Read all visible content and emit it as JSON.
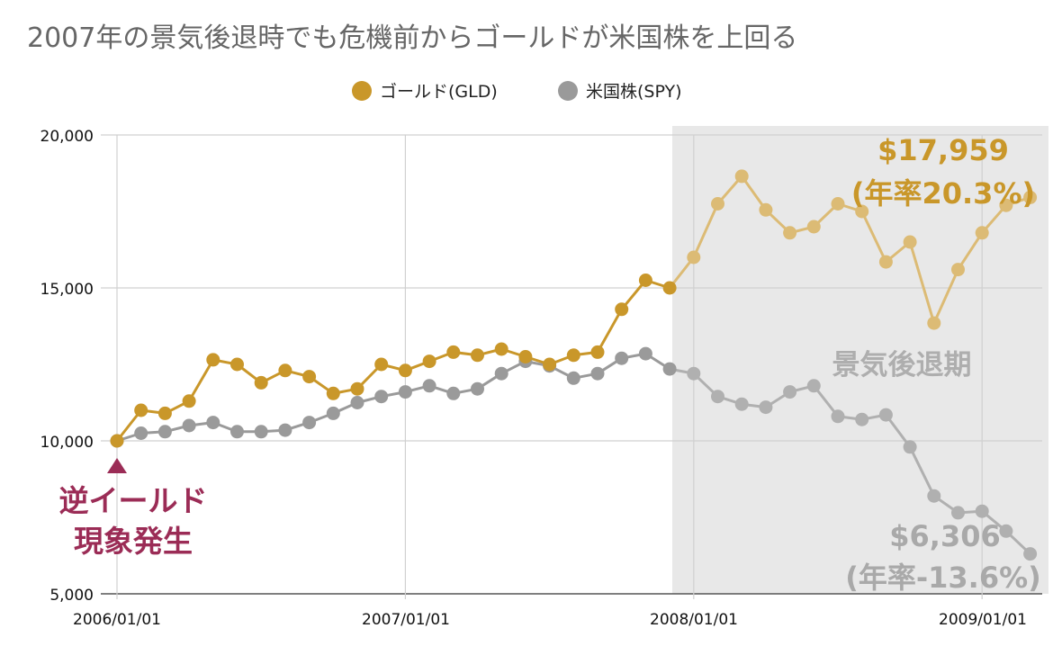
{
  "chart_data": {
    "type": "line",
    "title": "2007年の景気後退時でも危機前からゴールドが米国株を上回る",
    "legend": {
      "placement": "top-center",
      "entries": [
        "ゴールド(GLD)",
        "米国株(SPY)"
      ]
    },
    "x_tick_labels": [
      "2006/01/01",
      "2007/01/01",
      "2008/01/01",
      "2009/01/01"
    ],
    "y_tick_labels": [
      "20,000",
      "15,000",
      "10,000",
      "5,000"
    ],
    "ylim": [
      5000,
      20000
    ],
    "grid": true,
    "shaded_region": {
      "label": "景気後退期",
      "from_month_index": 23,
      "to_month_index": 39
    },
    "series": [
      {
        "name": "ゴールド(GLD)",
        "color": "#C9972A",
        "values": [
          10000,
          11000,
          10900,
          11300,
          12650,
          12500,
          11900,
          12300,
          12100,
          11550,
          11700,
          12500,
          12300,
          12600,
          12900,
          12800,
          13000,
          12750,
          12500,
          12800,
          12900,
          14300,
          15250,
          15000,
          16000,
          17750,
          18650,
          17550,
          16800,
          17000,
          17750,
          17500,
          15850,
          16500,
          13850,
          15600,
          16800,
          17700,
          17959
        ]
      },
      {
        "name": "米国株(SPY)",
        "color": "#9A9A9A",
        "values": [
          10000,
          10250,
          10300,
          10500,
          10600,
          10300,
          10300,
          10350,
          10600,
          10900,
          11250,
          11450,
          11600,
          11800,
          11550,
          11700,
          12200,
          12600,
          12450,
          12050,
          12200,
          12700,
          12850,
          12350,
          12200,
          11450,
          11200,
          11100,
          11600,
          11800,
          10800,
          10700,
          10850,
          9800,
          8200,
          7650,
          7700,
          7050,
          6306
        ]
      }
    ],
    "annotations": {
      "inversion_line1": "逆イールド",
      "inversion_line2": "現象発生",
      "gold_final_value": "$17,959",
      "gold_final_rate": "(年率20.3%)",
      "spy_final_value": "$6,306",
      "spy_final_rate": "(年率-13.6%)",
      "inversion_color": "#9B2C56"
    }
  }
}
